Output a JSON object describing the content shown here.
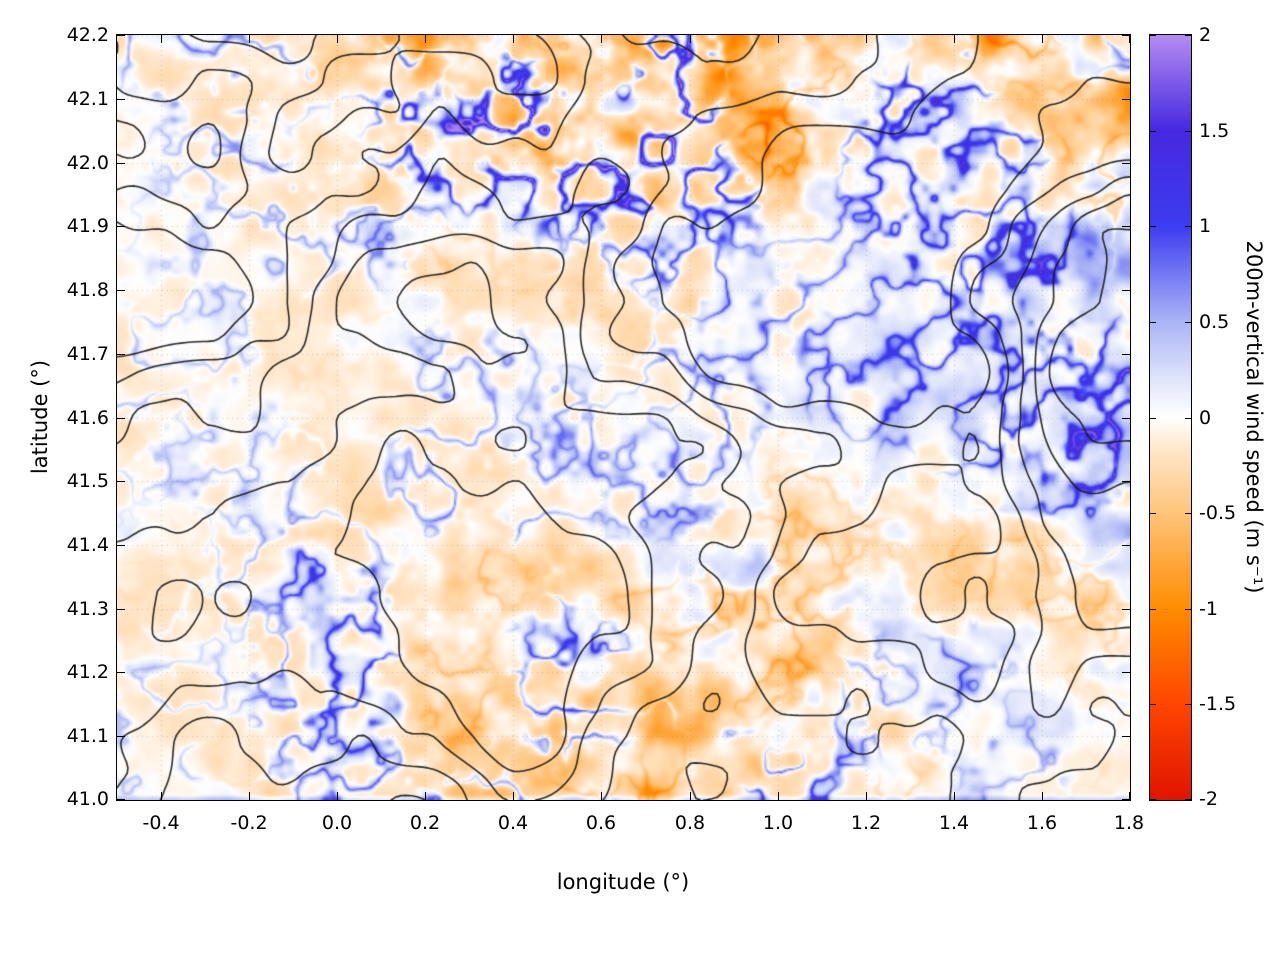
{
  "figure": {
    "background": "#ffffff"
  },
  "chart_data": {
    "type": "heatmap",
    "title": "",
    "xlabel": "longitude (°)",
    "ylabel": "latitude (°)",
    "xlim": [
      -0.5,
      1.8
    ],
    "ylim": [
      41.0,
      42.2
    ],
    "grid": "faint dotted gridlines at major ticks",
    "x_ticks": [
      -0.4,
      -0.2,
      0.0,
      0.2,
      0.4,
      0.6,
      0.8,
      1.0,
      1.2,
      1.4,
      1.6,
      1.8
    ],
    "x_tick_labels": [
      "-0.4",
      "-0.2",
      "0.0",
      "0.2",
      "0.4",
      "0.6",
      "0.8",
      "1.0",
      "1.2",
      "1.4",
      "1.6",
      "1.8"
    ],
    "y_ticks": [
      41.0,
      41.1,
      41.2,
      41.3,
      41.4,
      41.5,
      41.6,
      41.7,
      41.8,
      41.9,
      42.0,
      42.1,
      42.2
    ],
    "y_tick_labels": [
      "41.0",
      "41.1",
      "41.2",
      "41.3",
      "41.4",
      "41.5",
      "41.6",
      "41.7",
      "41.8",
      "41.9",
      "42.0",
      "42.1",
      "42.2"
    ],
    "colorbar": {
      "label": "200m-vertical wind speed (m s⁻¹)",
      "min": -2,
      "max": 2,
      "tick_values": [
        2,
        1.5,
        1,
        0.5,
        0,
        -0.5,
        -1,
        -1.5,
        -2
      ],
      "tick_labels": [
        "2",
        "1.5",
        "1",
        "0.5",
        "0",
        "-0.5",
        "-1",
        "-1.5",
        "-2"
      ],
      "stops": [
        {
          "v": -2.0,
          "c": "#e01400"
        },
        {
          "v": -1.5,
          "c": "#ff4500"
        },
        {
          "v": -1.0,
          "c": "#ff8c00"
        },
        {
          "v": -0.5,
          "c": "#ffc47a"
        },
        {
          "v": -0.15,
          "c": "#ffe9cf"
        },
        {
          "v": 0.0,
          "c": "#ffffff"
        },
        {
          "v": 0.2,
          "c": "#dfe4fb"
        },
        {
          "v": 0.5,
          "c": "#aab4f6"
        },
        {
          "v": 1.0,
          "c": "#3c3cf0"
        },
        {
          "v": 1.5,
          "c": "#4628e0"
        },
        {
          "v": 2.0,
          "c": "#b48cf2"
        }
      ]
    },
    "overlay": "black terrain elevation contour lines drawn over the wind-speed field",
    "contour_levels": [
      0.34,
      0.42,
      0.5,
      0.58,
      0.66
    ],
    "field_summary": {
      "description": "Fine-grained vertical wind speed field: mostly near-zero (white/pale) with thin blue updraft filaments and soft orange downdraft patches. Strong turbulent band with saturated red streaks and blue/purple patches along the northern edge (lat 41.95-42.2, lon 0.3-1.8) and the top-right corner; strong blue streaks along the eastern edge (lon 1.7-1.8); mixed blue-filament / orange pattern across the south-central area (lon 0.3-1.3, lat 41.0-41.45) with small purple spots near (1.0-1.15, 41.3-41.35); quiet, smooth near-zero region in the southeast corner; pale speckle over the western third.",
      "amp_grid": [
        [
          0.6,
          0.7,
          0.9,
          1.7,
          2.1,
          2.3,
          2.3,
          2.1,
          1.7,
          1.5,
          1.8,
          2.2
        ],
        [
          0.5,
          0.6,
          0.8,
          1.3,
          1.9,
          2.3,
          2.1,
          1.9,
          1.5,
          1.1,
          1.3,
          1.8
        ],
        [
          0.5,
          0.45,
          0.5,
          0.65,
          0.75,
          0.9,
          1.0,
          0.9,
          0.85,
          0.95,
          1.1,
          1.5
        ],
        [
          0.5,
          0.45,
          0.45,
          0.55,
          0.6,
          0.65,
          0.7,
          0.65,
          0.7,
          0.85,
          1.05,
          1.4
        ],
        [
          0.45,
          0.5,
          0.55,
          0.6,
          0.6,
          0.65,
          0.7,
          0.75,
          0.8,
          0.9,
          1.0,
          1.3
        ],
        [
          0.45,
          0.55,
          0.85,
          1.05,
          1.0,
          0.95,
          1.05,
          1.25,
          1.25,
          1.0,
          0.95,
          1.1
        ],
        [
          0.4,
          0.55,
          0.85,
          1.05,
          1.15,
          1.25,
          1.45,
          1.45,
          1.2,
          0.8,
          0.7,
          0.9
        ],
        [
          0.4,
          0.5,
          0.7,
          0.95,
          1.15,
          1.35,
          1.4,
          1.2,
          0.9,
          0.55,
          0.45,
          0.55
        ]
      ],
      "bias_grid": [
        [
          -0.05,
          -0.08,
          -0.12,
          -0.3,
          -0.42,
          -0.45,
          -0.4,
          -0.32,
          -0.2,
          -0.1,
          -0.22,
          -0.42
        ],
        [
          -0.05,
          -0.06,
          -0.1,
          -0.22,
          -0.36,
          -0.42,
          -0.32,
          -0.26,
          -0.12,
          0.0,
          -0.1,
          -0.22
        ],
        [
          -0.05,
          -0.05,
          -0.06,
          -0.1,
          -0.12,
          -0.1,
          -0.08,
          -0.04,
          0.0,
          0.05,
          0.1,
          0.12
        ],
        [
          -0.08,
          -0.1,
          -0.06,
          -0.1,
          -0.1,
          -0.06,
          -0.05,
          -0.04,
          0.0,
          0.02,
          0.1,
          0.15
        ],
        [
          -0.1,
          -0.14,
          -0.1,
          -0.12,
          -0.15,
          -0.1,
          -0.1,
          -0.06,
          -0.1,
          -0.08,
          0.0,
          0.1
        ],
        [
          -0.06,
          -0.1,
          -0.16,
          -0.2,
          -0.15,
          -0.12,
          -0.16,
          -0.2,
          -0.15,
          -0.1,
          -0.04,
          0.05
        ],
        [
          -0.05,
          -0.1,
          -0.16,
          -0.2,
          -0.2,
          -0.16,
          -0.2,
          -0.2,
          -0.15,
          -0.06,
          0.0,
          0.02
        ],
        [
          -0.05,
          -0.08,
          -0.14,
          -0.16,
          -0.2,
          -0.2,
          -0.16,
          -0.1,
          -0.05,
          0.0,
          0.0,
          0.0
        ]
      ]
    }
  }
}
